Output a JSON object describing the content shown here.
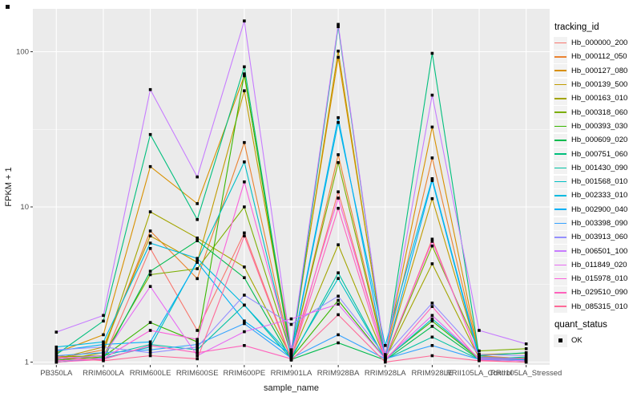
{
  "chart_data": {
    "type": "line",
    "xlabel": "sample_name",
    "ylabel": "FPKM + 1",
    "y_scale": "log10",
    "y_ticks": [
      1,
      10,
      100
    ],
    "y_tick_labels": [
      "1",
      "10",
      "100"
    ],
    "ylim": [
      1,
      190
    ],
    "grid": true,
    "panel_bg": "#EBEBEB",
    "grid_color": "#FFFFFF",
    "point_shape": "filled-square",
    "point_color": "#000000",
    "categories": [
      "PB350LA",
      "RRIM600LA",
      "RRIM600LE",
      "RRIM600SE",
      "RRIM600PE",
      "RRIM901LA",
      "RRIM928BA",
      "RRIM928LA",
      "RRIM928LE",
      "RRII105LA_Control",
      "RRII105LA_Stressed"
    ],
    "series": [
      {
        "name": "Hb_000000_200",
        "color": "#F8766D",
        "values": [
          1.1,
          1.05,
          5.4,
          1.6,
          6.8,
          1.05,
          12.5,
          1.05,
          6.2,
          1.05,
          1.02
        ]
      },
      {
        "name": "Hb_000112_050",
        "color": "#EA8331",
        "values": [
          1.05,
          1.2,
          7.0,
          3.45,
          26.0,
          1.1,
          21.7,
          1.1,
          20.7,
          1.1,
          1.05
        ]
      },
      {
        "name": "Hb_000127_080",
        "color": "#D89000",
        "values": [
          1.15,
          1.5,
          18.2,
          10.5,
          70.0,
          1.2,
          92.0,
          1.12,
          32.7,
          1.12,
          1.14
        ]
      },
      {
        "name": "Hb_000139_500",
        "color": "#C09B00",
        "values": [
          1.05,
          1.25,
          6.5,
          4.4,
          56.0,
          1.15,
          101.0,
          1.08,
          11.3,
          1.08,
          1.06
        ]
      },
      {
        "name": "Hb_000163_010",
        "color": "#A3A500",
        "values": [
          1.02,
          1.15,
          9.3,
          6.3,
          4.1,
          1.08,
          5.7,
          1.05,
          4.3,
          1.06,
          1.03
        ]
      },
      {
        "name": "Hb_000318_060",
        "color": "#7CAE00",
        "values": [
          1.08,
          1.1,
          3.66,
          4.0,
          10.0,
          1.12,
          19.3,
          1.06,
          5.6,
          1.18,
          1.22
        ]
      },
      {
        "name": "Hb_000393_030",
        "color": "#39B600",
        "values": [
          1.03,
          1.08,
          1.8,
          1.35,
          72.0,
          1.06,
          2.5,
          1.05,
          1.84,
          1.05,
          1.02
        ]
      },
      {
        "name": "Hb_000609_020",
        "color": "#00BB4E",
        "values": [
          1.0,
          1.05,
          3.85,
          6.05,
          3.5,
          1.04,
          1.33,
          1.03,
          1.7,
          1.04,
          1.02
        ]
      },
      {
        "name": "Hb_000751_060",
        "color": "#00BF7D",
        "values": [
          1.12,
          1.84,
          29.3,
          8.3,
          80.0,
          1.1,
          145.0,
          1.08,
          97.7,
          1.1,
          1.15
        ]
      },
      {
        "name": "Hb_001430_090",
        "color": "#00C1A3",
        "values": [
          1.05,
          1.1,
          1.3,
          1.2,
          2.33,
          1.05,
          3.76,
          1.04,
          1.45,
          1.04,
          1.08
        ]
      },
      {
        "name": "Hb_001568_010",
        "color": "#00BFC4",
        "values": [
          1.0,
          1.06,
          1.25,
          4.5,
          19.5,
          1.08,
          3.46,
          1.04,
          1.9,
          1.06,
          1.04
        ]
      },
      {
        "name": "Hb_002333_010",
        "color": "#00BAE0",
        "values": [
          1.25,
          1.35,
          5.85,
          4.66,
          2.33,
          1.1,
          35.0,
          1.28,
          15.2,
          1.08,
          1.05
        ]
      },
      {
        "name": "Hb_002900_040",
        "color": "#00B0F6",
        "values": [
          1.18,
          1.3,
          1.35,
          4.4,
          1.84,
          1.12,
          37.6,
          1.06,
          14.8,
          1.05,
          1.03
        ]
      },
      {
        "name": "Hb_003398_090",
        "color": "#35A2FF",
        "values": [
          1.1,
          1.15,
          1.2,
          1.3,
          1.77,
          1.06,
          1.5,
          1.05,
          1.28,
          1.04,
          1.02
        ]
      },
      {
        "name": "Hb_003913_060",
        "color": "#9590FF",
        "values": [
          1.2,
          1.25,
          1.15,
          1.25,
          2.7,
          1.75,
          2.66,
          1.1,
          2.4,
          1.12,
          1.1
        ]
      },
      {
        "name": "Hb_006501_100",
        "color": "#C77CFF",
        "values": [
          1.56,
          2.0,
          57.0,
          15.6,
          158.0,
          1.2,
          150.0,
          1.1,
          52.5,
          1.6,
          1.31
        ]
      },
      {
        "name": "Hb_011849_020",
        "color": "#E76BF3",
        "values": [
          1.05,
          1.1,
          3.07,
          1.1,
          1.57,
          1.9,
          2.36,
          1.05,
          2.0,
          1.05,
          1.02
        ]
      },
      {
        "name": "Hb_015978_010",
        "color": "#FA62DB",
        "values": [
          1.02,
          1.05,
          1.6,
          1.4,
          14.5,
          1.15,
          11.4,
          1.07,
          6.0,
          1.07,
          1.05
        ]
      },
      {
        "name": "Hb_029510_090",
        "color": "#FF62BC",
        "values": [
          1.0,
          1.04,
          1.28,
          1.15,
          1.28,
          1.05,
          9.8,
          1.02,
          2.28,
          1.03,
          1.0
        ]
      },
      {
        "name": "Hb_085315_010",
        "color": "#FF6A98",
        "values": [
          1.08,
          1.02,
          1.1,
          1.05,
          6.5,
          1.03,
          2.02,
          1.0,
          1.1,
          1.02,
          1.0
        ]
      }
    ],
    "legend": {
      "position": "right",
      "tracking_title": "tracking_id",
      "quant_title": "quant_status",
      "quant_items": [
        {
          "label": "OK",
          "marker": "filled-square",
          "color": "#000000"
        }
      ]
    }
  }
}
